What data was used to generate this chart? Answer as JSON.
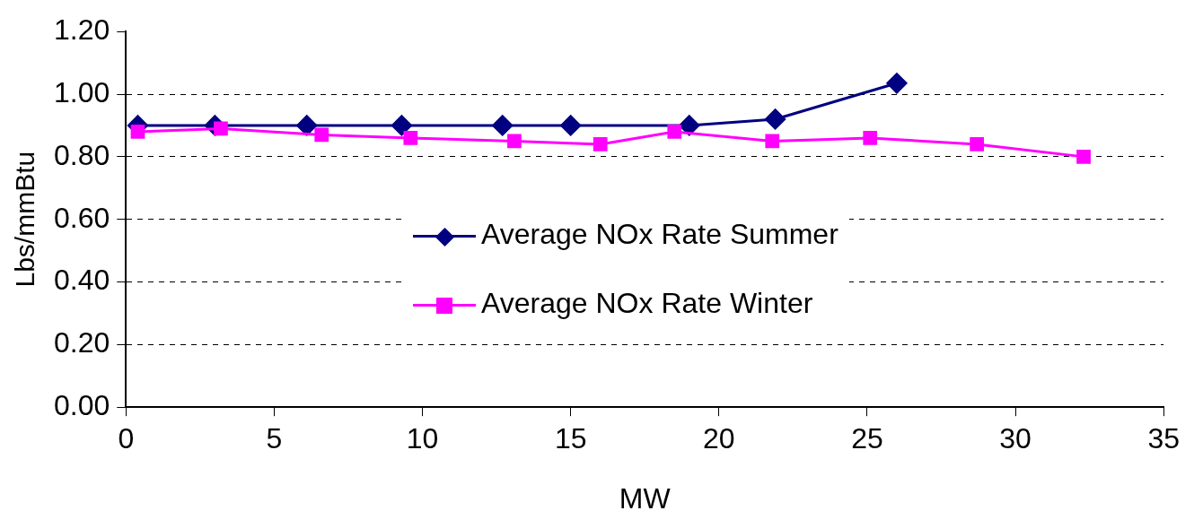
{
  "chart_data": {
    "type": "line",
    "xlabel": "MW",
    "ylabel": "Lbs/mmBtu",
    "xlim": [
      0,
      35
    ],
    "xticks": [
      0,
      5,
      10,
      15,
      20,
      25,
      30,
      35
    ],
    "ylim": [
      0,
      1.2
    ],
    "yticks": [
      {
        "value": 0,
        "label": "0.00"
      },
      {
        "value": 0.2,
        "label": "0.20"
      },
      {
        "value": 0.4,
        "label": "0.40"
      },
      {
        "value": 0.6,
        "label": "0.60"
      },
      {
        "value": 0.8,
        "label": "0.80"
      },
      {
        "value": 1.0,
        "label": "1.00"
      },
      {
        "value": 1.2,
        "label": "1.20"
      }
    ],
    "grid": "y",
    "legend": "center",
    "series": [
      {
        "name": "Average NOx Rate Summer",
        "color": "#000080",
        "marker": "diamond",
        "x": [
          0.4,
          3.0,
          6.1,
          9.3,
          12.7,
          15.0,
          19.0,
          21.9,
          26.0
        ],
        "values": [
          0.9,
          0.9,
          0.9,
          0.9,
          0.9,
          0.9,
          0.9,
          0.92,
          1.035
        ]
      },
      {
        "name": "Average NOx Rate Winter",
        "color": "#ff00ff",
        "marker": "square",
        "x": [
          0.4,
          3.2,
          6.6,
          9.6,
          13.1,
          16.0,
          18.5,
          21.8,
          25.1,
          28.7,
          32.3
        ],
        "values": [
          0.88,
          0.89,
          0.87,
          0.86,
          0.85,
          0.84,
          0.88,
          0.85,
          0.86,
          0.84,
          0.8
        ]
      }
    ]
  }
}
